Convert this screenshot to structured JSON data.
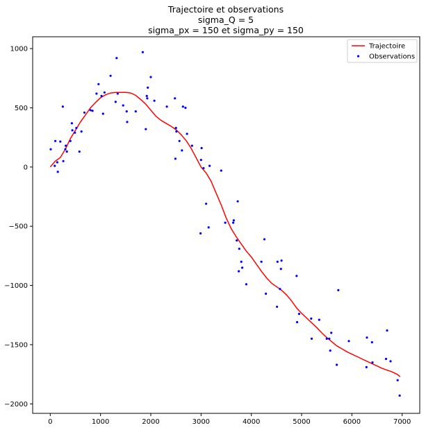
{
  "chart_data": {
    "type": "line",
    "title": [
      "Trajectoire et observations",
      "sigma_Q = 5",
      "sigma_px = 150 et sigma_py = 150"
    ],
    "xlabel": "",
    "ylabel": "",
    "xlim": [
      -350,
      7350
    ],
    "ylim": [
      -2080,
      1100
    ],
    "xticks": [
      0,
      1000,
      2000,
      3000,
      4000,
      5000,
      6000,
      7000
    ],
    "yticks": [
      -2000,
      -1500,
      -1000,
      -500,
      0,
      500,
      1000
    ],
    "grid": false,
    "legend_position": "top-right",
    "series": [
      {
        "name": "Trajectoire",
        "style": "line",
        "color": "#ff0000",
        "points": [
          [
            0,
            0
          ],
          [
            100,
            50
          ],
          [
            200,
            80
          ],
          [
            300,
            150
          ],
          [
            400,
            240
          ],
          [
            500,
            310
          ],
          [
            600,
            380
          ],
          [
            700,
            440
          ],
          [
            800,
            500
          ],
          [
            900,
            545
          ],
          [
            1000,
            585
          ],
          [
            1100,
            610
          ],
          [
            1200,
            625
          ],
          [
            1300,
            630
          ],
          [
            1400,
            630
          ],
          [
            1500,
            630
          ],
          [
            1600,
            625
          ],
          [
            1700,
            605
          ],
          [
            1800,
            570
          ],
          [
            1900,
            530
          ],
          [
            2000,
            480
          ],
          [
            2100,
            430
          ],
          [
            2200,
            395
          ],
          [
            2300,
            370
          ],
          [
            2400,
            345
          ],
          [
            2500,
            315
          ],
          [
            2600,
            275
          ],
          [
            2700,
            225
          ],
          [
            2800,
            160
          ],
          [
            2900,
            80
          ],
          [
            3000,
            0
          ],
          [
            3100,
            -50
          ],
          [
            3200,
            -120
          ],
          [
            3300,
            -220
          ],
          [
            3400,
            -320
          ],
          [
            3500,
            -430
          ],
          [
            3600,
            -520
          ],
          [
            3700,
            -590
          ],
          [
            3800,
            -650
          ],
          [
            3900,
            -710
          ],
          [
            4000,
            -760
          ],
          [
            4100,
            -820
          ],
          [
            4200,
            -880
          ],
          [
            4300,
            -935
          ],
          [
            4400,
            -980
          ],
          [
            4500,
            -1010
          ],
          [
            4600,
            -1040
          ],
          [
            4700,
            -1080
          ],
          [
            4800,
            -1130
          ],
          [
            4900,
            -1190
          ],
          [
            5000,
            -1235
          ],
          [
            5100,
            -1275
          ],
          [
            5200,
            -1315
          ],
          [
            5300,
            -1355
          ],
          [
            5400,
            -1400
          ],
          [
            5500,
            -1440
          ],
          [
            5600,
            -1475
          ],
          [
            5700,
            -1510
          ],
          [
            5800,
            -1535
          ],
          [
            5900,
            -1560
          ],
          [
            6000,
            -1580
          ],
          [
            6100,
            -1600
          ],
          [
            6200,
            -1620
          ],
          [
            6300,
            -1640
          ],
          [
            6400,
            -1660
          ],
          [
            6500,
            -1680
          ],
          [
            6600,
            -1700
          ],
          [
            6700,
            -1715
          ],
          [
            6800,
            -1730
          ],
          [
            6900,
            -1750
          ],
          [
            6960,
            -1770
          ]
        ]
      },
      {
        "name": "Observations",
        "style": "points",
        "color": "#0000ff",
        "points": [
          [
            10,
            150
          ],
          [
            90,
            10
          ],
          [
            100,
            220
          ],
          [
            140,
            40
          ],
          [
            150,
            -40
          ],
          [
            200,
            215
          ],
          [
            250,
            510
          ],
          [
            260,
            50
          ],
          [
            300,
            150
          ],
          [
            310,
            180
          ],
          [
            330,
            130
          ],
          [
            400,
            220
          ],
          [
            430,
            370
          ],
          [
            440,
            310
          ],
          [
            490,
            290
          ],
          [
            520,
            330
          ],
          [
            580,
            130
          ],
          [
            620,
            300
          ],
          [
            680,
            460
          ],
          [
            800,
            480
          ],
          [
            840,
            475
          ],
          [
            920,
            620
          ],
          [
            960,
            700
          ],
          [
            1020,
            600
          ],
          [
            1050,
            450
          ],
          [
            1080,
            630
          ],
          [
            1200,
            770
          ],
          [
            1300,
            550
          ],
          [
            1320,
            920
          ],
          [
            1340,
            620
          ],
          [
            1450,
            520
          ],
          [
            1520,
            470
          ],
          [
            1530,
            380
          ],
          [
            1700,
            470
          ],
          [
            1840,
            970
          ],
          [
            1900,
            320
          ],
          [
            1920,
            600
          ],
          [
            1930,
            580
          ],
          [
            1940,
            670
          ],
          [
            2000,
            760
          ],
          [
            2070,
            560
          ],
          [
            2320,
            510
          ],
          [
            2480,
            580
          ],
          [
            2490,
            70
          ],
          [
            2500,
            330
          ],
          [
            2510,
            300
          ],
          [
            2570,
            220
          ],
          [
            2620,
            140
          ],
          [
            2640,
            510
          ],
          [
            2690,
            500
          ],
          [
            2720,
            280
          ],
          [
            2820,
            180
          ],
          [
            2990,
            -560
          ],
          [
            3000,
            60
          ],
          [
            3010,
            160
          ],
          [
            3050,
            -10
          ],
          [
            3100,
            -310
          ],
          [
            3150,
            -510
          ],
          [
            3170,
            10
          ],
          [
            3400,
            -30
          ],
          [
            3480,
            -470
          ],
          [
            3640,
            -470
          ],
          [
            3650,
            -450
          ],
          [
            3710,
            -620
          ],
          [
            3730,
            -290
          ],
          [
            3750,
            -880
          ],
          [
            3760,
            -690
          ],
          [
            3800,
            -800
          ],
          [
            3820,
            -850
          ],
          [
            3900,
            -990
          ],
          [
            4200,
            -800
          ],
          [
            4260,
            -610
          ],
          [
            4290,
            -1070
          ],
          [
            4510,
            -1180
          ],
          [
            4520,
            -800
          ],
          [
            4570,
            -1030
          ],
          [
            4590,
            -860
          ],
          [
            4600,
            -790
          ],
          [
            4900,
            -920
          ],
          [
            4910,
            -1310
          ],
          [
            4950,
            -1240
          ],
          [
            5190,
            -1280
          ],
          [
            5200,
            -1450
          ],
          [
            5350,
            -1290
          ],
          [
            5500,
            -1450
          ],
          [
            5550,
            -1450
          ],
          [
            5570,
            -1550
          ],
          [
            5590,
            -1400
          ],
          [
            5700,
            -1670
          ],
          [
            5730,
            -1040
          ],
          [
            5940,
            -1470
          ],
          [
            6290,
            -1690
          ],
          [
            6300,
            -1440
          ],
          [
            6400,
            -1480
          ],
          [
            6410,
            -1650
          ],
          [
            6680,
            -1620
          ],
          [
            6700,
            -1380
          ],
          [
            6770,
            -1640
          ],
          [
            6910,
            -1800
          ],
          [
            6950,
            -1930
          ]
        ]
      }
    ]
  }
}
